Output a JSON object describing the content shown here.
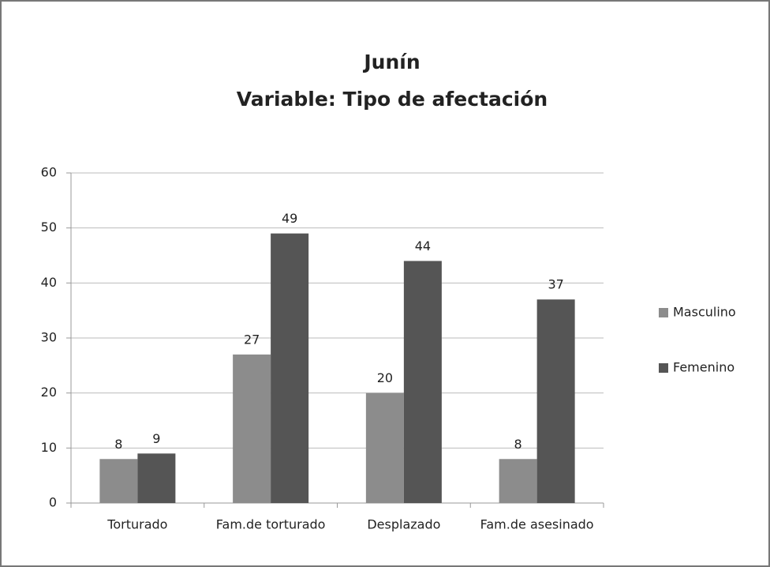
{
  "chart_data": {
    "type": "bar",
    "title": "Junín",
    "subtitle": "Variable: Tipo de afectación",
    "categories": [
      "Torturado",
      "Fam.de torturado",
      "Desplazado",
      "Fam.de asesinado"
    ],
    "series": [
      {
        "name": "Masculino",
        "color": "#8c8c8c",
        "values": [
          8,
          27,
          20,
          8
        ]
      },
      {
        "name": "Femenino",
        "color": "#555555",
        "values": [
          9,
          49,
          44,
          37
        ]
      }
    ],
    "ylim": [
      0,
      60
    ],
    "yticks": [
      0,
      10,
      20,
      30,
      40,
      50,
      60
    ],
    "grid": true,
    "legend": "right"
  }
}
